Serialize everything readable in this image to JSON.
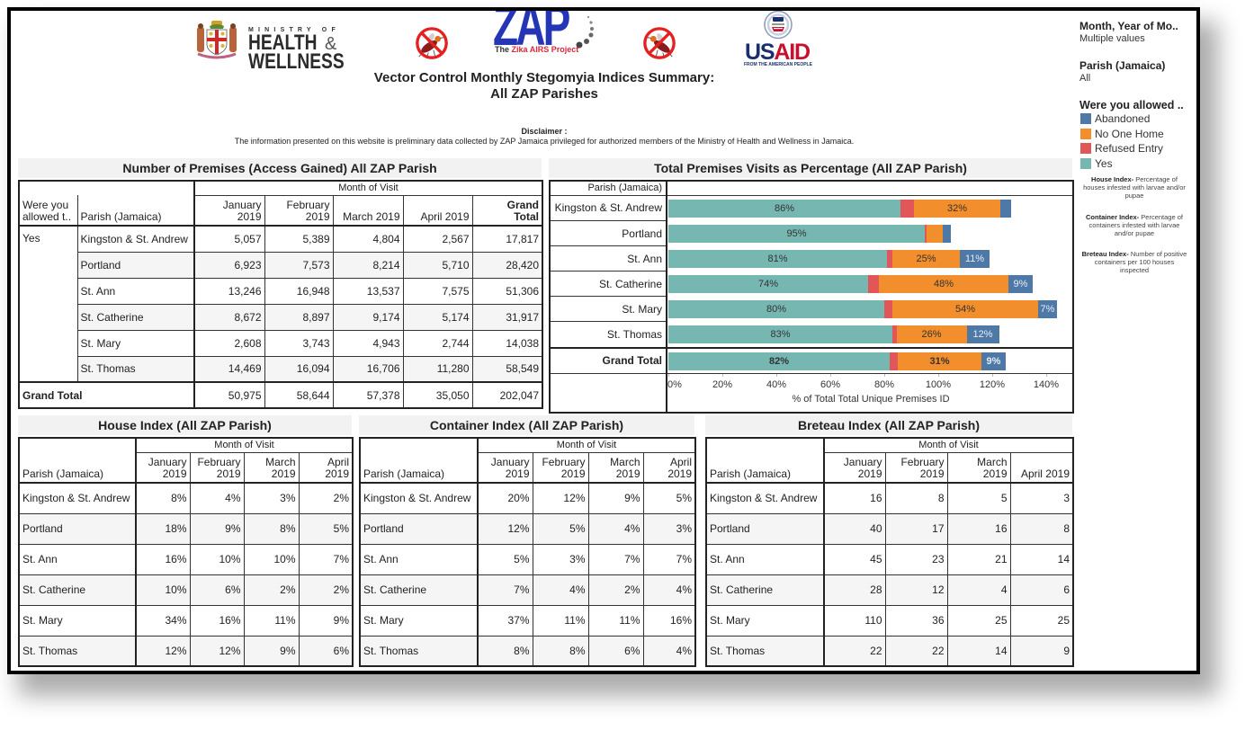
{
  "header": {
    "moh_logo": {
      "ministry_of": "MINISTRY OF",
      "health": "HEALTH",
      "amp": "&",
      "wellness": "WELLNESS"
    },
    "zap_logo": {
      "mark": "ZAP",
      "tagline_the": "The ",
      "tagline_name": "Zika AIRS Project"
    },
    "usaid_logo": {
      "us": "US",
      "aid": "AID",
      "tagline": "FROM THE AMERICAN PEOPLE"
    },
    "title_line1": "Vector Control Monthly Stegomyia Indices Summary:",
    "title_line2": "All ZAP Parishes",
    "disclaimer_label": "Disclaimer :",
    "disclaimer_text": "The information presented on this website is preliminary data collected by ZAP Jamaica privileged for authorized members of the Ministry of Health and Wellness in Jamaica."
  },
  "sidebar": {
    "filters": [
      {
        "label": "Month, Year of Mo..",
        "value": "Multiple values"
      },
      {
        "label": "Parish (Jamaica)",
        "value": "All"
      }
    ],
    "legend": {
      "title": "Were you allowed ..",
      "items": [
        {
          "label": "Abandoned",
          "color": "#4e79a7"
        },
        {
          "label": "No One Home",
          "color": "#f28e2b"
        },
        {
          "label": "Refused Entry",
          "color": "#e15759"
        },
        {
          "label": "Yes",
          "color": "#76b7b2"
        }
      ]
    },
    "definitions": [
      {
        "term": "House Index-",
        "text": " Percentage of houses infested with larvae and/or pupae"
      },
      {
        "term": "Container Index-",
        "text": " Percentage of containers infested with larvae and/or pupae"
      },
      {
        "term": "Breteau Index-",
        "text": " Number of positive containers per 100 houses inspected"
      }
    ]
  },
  "premises_table": {
    "title": "Number of Premises (Access Gained) All ZAP Parish",
    "col_group_label": "Month of Visit",
    "row_headers": [
      "Were you allowed t..",
      "Parish (Jamaica)"
    ],
    "columns": [
      "January 2019",
      "February 2019",
      "March 2019",
      "April 2019"
    ],
    "grand_total_label": "Grand Total",
    "group_label": "Yes",
    "rows": [
      {
        "parish": "Kingston & St. Andrew",
        "values": [
          "5,057",
          "5,389",
          "4,804",
          "2,567"
        ],
        "total": "17,817"
      },
      {
        "parish": "Portland",
        "values": [
          "6,923",
          "7,573",
          "8,214",
          "5,710"
        ],
        "total": "28,420"
      },
      {
        "parish": "St. Ann",
        "values": [
          "13,246",
          "16,948",
          "13,537",
          "7,575"
        ],
        "total": "51,306"
      },
      {
        "parish": "St. Catherine",
        "values": [
          "8,672",
          "8,897",
          "9,174",
          "5,174"
        ],
        "total": "31,917"
      },
      {
        "parish": "St. Mary",
        "values": [
          "2,608",
          "3,743",
          "4,943",
          "2,744"
        ],
        "total": "14,038"
      },
      {
        "parish": "St. Thomas",
        "values": [
          "14,469",
          "16,094",
          "16,706",
          "11,280"
        ],
        "total": "58,549"
      }
    ],
    "grand_total_row": {
      "label": "Grand Total",
      "values": [
        "50,975",
        "58,644",
        "57,378",
        "35,050"
      ],
      "total": "202,047"
    }
  },
  "visits_chart": {
    "title": "Total Premises Visits as Percentage (All ZAP Parish)",
    "row_header": "Parish (Jamaica)"
  },
  "chart_data": {
    "type": "bar",
    "orientation": "horizontal",
    "stacked": true,
    "title": "Total Premises Visits as Percentage (All ZAP Parish)",
    "categories": [
      "Kingston & St. Andrew",
      "Portland",
      "St. Ann",
      "St. Catherine",
      "St. Mary",
      "St. Thomas",
      "Grand Total"
    ],
    "total_category": "Grand Total",
    "series": [
      {
        "name": "Yes",
        "color": "#76b7b2",
        "values": [
          86,
          95,
          81,
          74,
          80,
          83,
          82
        ],
        "labels": [
          "86%",
          "95%",
          "81%",
          "74%",
          "80%",
          "83%",
          "82%"
        ]
      },
      {
        "name": "Refused Entry",
        "color": "#e15759",
        "values": [
          5,
          0.5,
          2,
          4,
          3,
          1.5,
          3
        ],
        "labels": [
          "",
          "",
          "",
          "",
          "",
          "",
          ""
        ]
      },
      {
        "name": "No One Home",
        "color": "#f28e2b",
        "values": [
          32,
          6,
          25,
          48,
          54,
          26,
          31
        ],
        "labels": [
          "32%",
          "",
          "25%",
          "48%",
          "54%",
          "26%",
          "31%"
        ]
      },
      {
        "name": "Abandoned",
        "color": "#4e79a7",
        "values": [
          4,
          3,
          11,
          9,
          7,
          12,
          9
        ],
        "labels": [
          "",
          "",
          "11%",
          "9%",
          "7%",
          "12%",
          "9%"
        ]
      }
    ],
    "xlabel": "% of Total Total Unique Premises ID",
    "ylabel": "Parish (Jamaica)",
    "xlim": [
      0,
      150
    ],
    "x_ticks": [
      0,
      20,
      40,
      60,
      80,
      100,
      120,
      140
    ],
    "x_tick_labels": [
      "0%",
      "20%",
      "40%",
      "60%",
      "80%",
      "100%",
      "120%",
      "140%"
    ],
    "grid": false,
    "legend_position": "right"
  },
  "index_tables": [
    {
      "title": "House Index (All ZAP Parish)",
      "col_group_label": "Month of Visit",
      "row_header": "Parish (Jamaica)",
      "columns": [
        "January 2019",
        "February 2019",
        "March 2019",
        "April 2019"
      ],
      "rows": [
        {
          "parish": "Kingston & St. Andrew",
          "values": [
            "8%",
            "4%",
            "3%",
            "2%"
          ]
        },
        {
          "parish": "Portland",
          "values": [
            "18%",
            "9%",
            "8%",
            "5%"
          ]
        },
        {
          "parish": "St. Ann",
          "values": [
            "16%",
            "10%",
            "10%",
            "7%"
          ]
        },
        {
          "parish": "St. Catherine",
          "values": [
            "10%",
            "6%",
            "2%",
            "2%"
          ]
        },
        {
          "parish": "St. Mary",
          "values": [
            "34%",
            "16%",
            "11%",
            "9%"
          ]
        },
        {
          "parish": "St. Thomas",
          "values": [
            "12%",
            "12%",
            "9%",
            "6%"
          ]
        }
      ]
    },
    {
      "title": "Container Index (All ZAP Parish)",
      "col_group_label": "Month of Visit",
      "row_header": "Parish (Jamaica)",
      "columns": [
        "January 2019",
        "February 2019",
        "March 2019",
        "April 2019"
      ],
      "rows": [
        {
          "parish": "Kingston & St. Andrew",
          "values": [
            "20%",
            "12%",
            "9%",
            "5%"
          ]
        },
        {
          "parish": "Portland",
          "values": [
            "12%",
            "5%",
            "4%",
            "3%"
          ]
        },
        {
          "parish": "St. Ann",
          "values": [
            "5%",
            "3%",
            "7%",
            "7%"
          ]
        },
        {
          "parish": "St. Catherine",
          "values": [
            "7%",
            "4%",
            "2%",
            "4%"
          ]
        },
        {
          "parish": "St. Mary",
          "values": [
            "37%",
            "11%",
            "11%",
            "16%"
          ]
        },
        {
          "parish": "St. Thomas",
          "values": [
            "8%",
            "8%",
            "6%",
            "4%"
          ]
        }
      ]
    },
    {
      "title": "Breteau Index (All ZAP Parish)",
      "col_group_label": "Month of Visit",
      "row_header": "Parish (Jamaica)",
      "columns": [
        "January 2019",
        "February 2019",
        "March 2019",
        "April 2019"
      ],
      "rows": [
        {
          "parish": "Kingston & St. Andrew",
          "values": [
            "16",
            "8",
            "5",
            "3"
          ]
        },
        {
          "parish": "Portland",
          "values": [
            "40",
            "17",
            "16",
            "8"
          ]
        },
        {
          "parish": "St. Ann",
          "values": [
            "45",
            "23",
            "21",
            "14"
          ]
        },
        {
          "parish": "St. Catherine",
          "values": [
            "28",
            "12",
            "4",
            "6"
          ]
        },
        {
          "parish": "St. Mary",
          "values": [
            "110",
            "36",
            "25",
            "25"
          ]
        },
        {
          "parish": "St. Thomas",
          "values": [
            "22",
            "22",
            "14",
            "9"
          ]
        }
      ]
    }
  ]
}
